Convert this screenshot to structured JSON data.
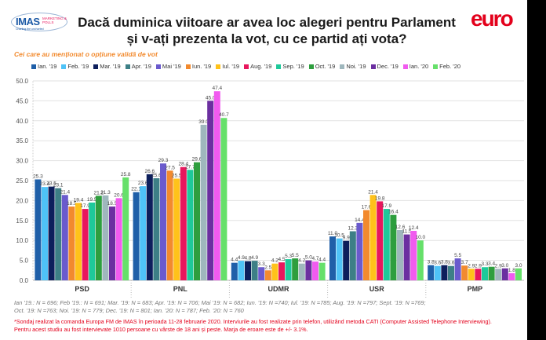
{
  "header": {
    "logo_text": "IMAS",
    "logo_sub": "MARKETING & POLLS",
    "logo_tagline": "Charting the uncharted",
    "title_line1": "Dacă duminica viitoare ar avea loc alegeri pentru Parlament",
    "title_line2": "și v-ați prezenta la vot, cu ce partid ați vota?",
    "brand_logo": "euro"
  },
  "chart_data": {
    "type": "bar",
    "subtitle": "Cei care au menționat o opțiune validă de vot",
    "categories": [
      "PSD",
      "PNL",
      "UDMR",
      "USR",
      "PMP"
    ],
    "ylim": [
      0,
      50
    ],
    "yticks": [
      "0.0",
      "5.0",
      "10.0",
      "15.0",
      "20.0",
      "25.0",
      "30.0",
      "35.0",
      "40.0",
      "45.0",
      "50.0"
    ],
    "grid": true,
    "legend_position": "top",
    "series": [
      {
        "name": "Ian. '19",
        "color": "#1f5fa8",
        "values": [
          25.3,
          22.1,
          4.4,
          11.0,
          3.8
        ]
      },
      {
        "name": "Feb. '19",
        "color": "#4fc3f7",
        "values": [
          23.4,
          23.6,
          4.9,
          10.5,
          3.6
        ]
      },
      {
        "name": "Mar. '19",
        "color": "#0d1f5c",
        "values": [
          23.5,
          26.6,
          4.8,
          9.9,
          3.8
        ]
      },
      {
        "name": "Apr. '19",
        "color": "#3d7f86",
        "values": [
          23.1,
          25.6,
          4.9,
          12.3,
          3.6
        ]
      },
      {
        "name": "Mai '19",
        "color": "#6a5acd",
        "values": [
          21.4,
          29.3,
          3.3,
          14.4,
          5.5
        ]
      },
      {
        "name": "Iun. '19",
        "color": "#f28a2e",
        "values": [
          18.5,
          27.5,
          2.5,
          17.6,
          3.7
        ]
      },
      {
        "name": "Iul. '19",
        "color": "#ffc21a",
        "values": [
          19.4,
          25.5,
          4.2,
          21.4,
          2.9
        ]
      },
      {
        "name": "Aug. '19",
        "color": "#e8175d",
        "values": [
          17.9,
          28.4,
          4.5,
          19.8,
          2.9
        ]
      },
      {
        "name": "Sep. '19",
        "color": "#1ec99a",
        "values": [
          19.5,
          27.7,
          5.3,
          17.9,
          3.3
        ]
      },
      {
        "name": "Oct. '19",
        "color": "#2e9e3e",
        "values": [
          21.2,
          29.6,
          5.5,
          16.4,
          3.4
        ]
      },
      {
        "name": "Noi. '19",
        "color": "#9fb7bd",
        "values": [
          21.3,
          39.0,
          4.2,
          12.6,
          2.9
        ]
      },
      {
        "name": "Dec. '19",
        "color": "#6b2fa0",
        "values": [
          18.5,
          45.0,
          5.0,
          11.5,
          3.0
        ]
      },
      {
        "name": "Ian. '20",
        "color": "#f15bef",
        "values": [
          20.6,
          47.4,
          4.7,
          12.4,
          1.8
        ]
      },
      {
        "name": "Feb. '20",
        "color": "#66e06a",
        "values": [
          25.8,
          40.7,
          4.4,
          10.0,
          3.0
        ]
      }
    ]
  },
  "footnote_line1": "Ian '19.: N = 696; Feb '19.: N = 691; Mar. '19: N = 683; Apr. '19: N = 706; Mai '19: N = 682; Iun. '19: N =740; Iul. '19: N =785; Aug. '19: N =797; Sept. '19: N =769;",
  "footnote_line2": "Oct. '19: N =763; Noi. '19: N = 779; Dec. '19: N = 801; Ian. '20: N = 787; Feb. '20: N = 760",
  "note_line1": "*Sondaj realizat la comanda Europa FM de IMAS în perioada 11-28 februarie 2020. Interviurile au fost realizate prin telefon, utilizând metoda CATI (Computer Assisted Telephone Interviewing).",
  "note_line2": "Pentru acest studiu au fost intervievate 1010 persoane cu vârste de 18 ani și peste. Marja de eroare este de +/- 3.1%."
}
